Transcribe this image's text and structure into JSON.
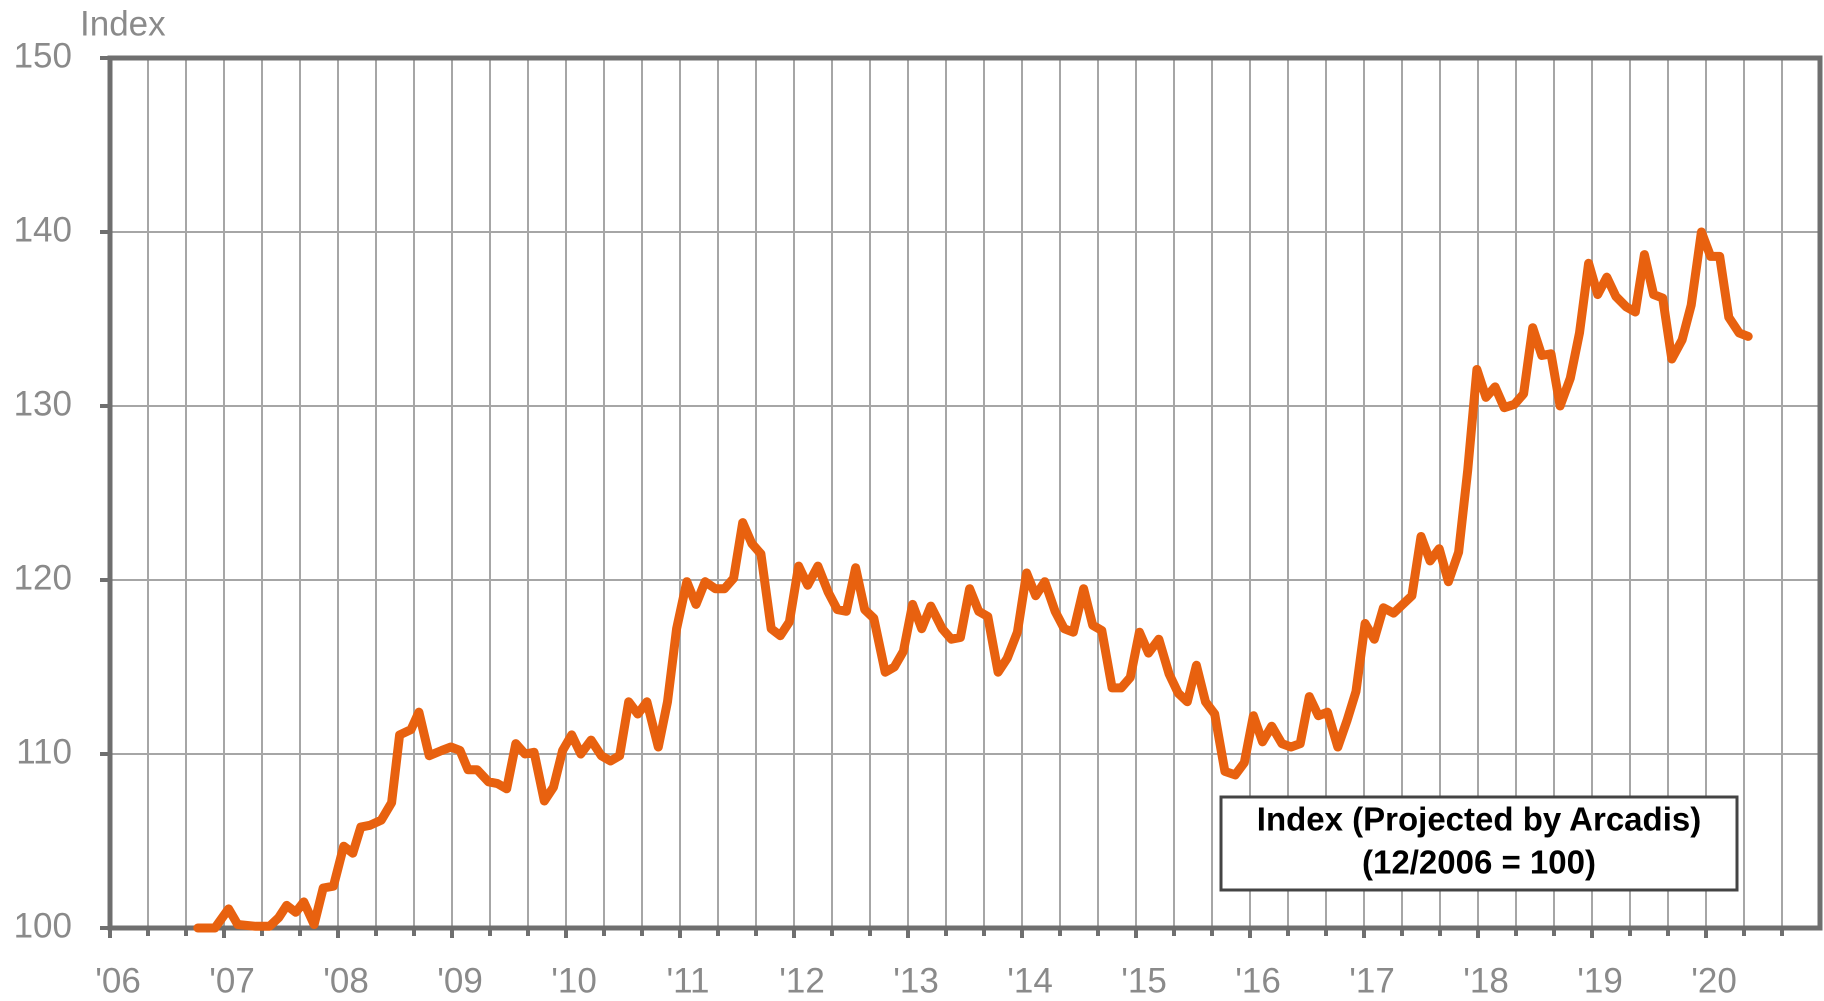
{
  "chart_data": {
    "type": "line",
    "y_label": "Index",
    "annotation": [
      "Index (Projected by Arcadis)",
      "(12/2006 = 100)"
    ],
    "xlim": [
      2006,
      2021
    ],
    "xticks": [
      {
        "value": 2006,
        "label": "'06"
      },
      {
        "value": 2007,
        "label": "'07"
      },
      {
        "value": 2008,
        "label": "'08"
      },
      {
        "value": 2009,
        "label": "'09"
      },
      {
        "value": 2010,
        "label": "'10"
      },
      {
        "value": 2011,
        "label": "'11"
      },
      {
        "value": 2012,
        "label": "'12"
      },
      {
        "value": 2013,
        "label": "'13"
      },
      {
        "value": 2014,
        "label": "'14"
      },
      {
        "value": 2015,
        "label": "'15"
      },
      {
        "value": 2016,
        "label": "'16"
      },
      {
        "value": 2017,
        "label": "'17"
      },
      {
        "value": 2018,
        "label": "'18"
      },
      {
        "value": 2019,
        "label": "'19"
      },
      {
        "value": 2020,
        "label": "'20"
      }
    ],
    "ylim": [
      100,
      150
    ],
    "yticks": [
      100,
      110,
      120,
      130,
      140,
      150
    ],
    "grid": true,
    "x": [
      2006.77,
      2006.92,
      2007.04,
      2007.12,
      2007.28,
      2007.4,
      2007.48,
      2007.55,
      2007.63,
      2007.7,
      2007.79,
      2007.87,
      2007.96,
      2008.05,
      2008.13,
      2008.2,
      2008.28,
      2008.38,
      2008.47,
      2008.54,
      2008.64,
      2008.71,
      2008.8,
      2008.91,
      2008.99,
      2009.07,
      2009.14,
      2009.22,
      2009.32,
      2009.4,
      2009.48,
      2009.56,
      2009.64,
      2009.72,
      2009.81,
      2009.89,
      2009.97,
      2010.05,
      2010.13,
      2010.22,
      2010.31,
      2010.39,
      2010.47,
      2010.55,
      2010.63,
      2010.71,
      2010.81,
      2010.89,
      2010.97,
      2011.06,
      2011.14,
      2011.22,
      2011.31,
      2011.39,
      2011.47,
      2011.55,
      2011.63,
      2011.71,
      2011.8,
      2011.88,
      2011.96,
      2012.04,
      2012.12,
      2012.21,
      2012.3,
      2012.38,
      2012.46,
      2012.54,
      2012.62,
      2012.7,
      2012.8,
      2012.88,
      2012.96,
      2013.04,
      2013.12,
      2013.2,
      2013.3,
      2013.38,
      2013.46,
      2013.54,
      2013.62,
      2013.7,
      2013.79,
      2013.87,
      2013.96,
      2014.04,
      2014.12,
      2014.2,
      2014.29,
      2014.37,
      2014.45,
      2014.54,
      2014.62,
      2014.7,
      2014.79,
      2014.87,
      2014.95,
      2015.03,
      2015.11,
      2015.2,
      2015.29,
      2015.37,
      2015.45,
      2015.53,
      2015.61,
      2015.69,
      2015.78,
      2015.87,
      2015.95,
      2016.03,
      2016.11,
      2016.19,
      2016.28,
      2016.36,
      2016.44,
      2016.52,
      2016.6,
      2016.68,
      2016.77,
      2016.85,
      2016.93,
      2017.01,
      2017.09,
      2017.17,
      2017.26,
      2017.34,
      2017.42,
      2017.5,
      2017.58,
      2017.66,
      2017.74,
      2017.83,
      2017.91,
      2017.99,
      2018.07,
      2018.15,
      2018.23,
      2018.32,
      2018.4,
      2018.48,
      2018.56,
      2018.64,
      2018.72,
      2018.81,
      2018.89,
      2018.97,
      2019.05,
      2019.13,
      2019.21,
      2019.3,
      2019.38,
      2019.46,
      2019.54,
      2019.62,
      2019.7,
      2019.79,
      2019.87,
      2019.96,
      2020.04,
      2020.12,
      2020.2,
      2020.29,
      2020.37
    ],
    "series": [
      {
        "name": "Index (Projected by Arcadis)",
        "color": "#e8610f",
        "values": [
          100.0,
          100.0,
          101.1,
          100.2,
          100.1,
          100.1,
          100.6,
          101.3,
          100.9,
          101.5,
          100.2,
          102.3,
          102.4,
          104.7,
          104.3,
          105.8,
          105.9,
          106.2,
          107.2,
          111.1,
          111.4,
          112.4,
          109.9,
          110.2,
          110.4,
          110.2,
          109.1,
          109.1,
          108.4,
          108.3,
          108.0,
          110.6,
          110.0,
          110.1,
          107.3,
          108.1,
          110.2,
          111.1,
          110.0,
          110.8,
          109.9,
          109.6,
          109.9,
          113.0,
          112.3,
          113.0,
          110.4,
          113.0,
          117.2,
          119.9,
          118.6,
          119.9,
          119.5,
          119.5,
          120.1,
          123.3,
          122.1,
          121.5,
          117.2,
          116.8,
          117.6,
          120.8,
          119.7,
          120.8,
          119.3,
          118.3,
          118.2,
          120.7,
          118.3,
          117.8,
          114.7,
          115.0,
          115.9,
          118.6,
          117.2,
          118.5,
          117.2,
          116.6,
          116.7,
          119.5,
          118.2,
          117.9,
          114.7,
          115.5,
          117.0,
          120.4,
          119.1,
          119.9,
          118.2,
          117.2,
          117.0,
          119.5,
          117.4,
          117.1,
          113.8,
          113.8,
          114.4,
          117.0,
          115.8,
          116.6,
          114.6,
          113.5,
          113.0,
          115.1,
          113.0,
          112.3,
          109.0,
          108.8,
          109.5,
          112.2,
          110.7,
          111.6,
          110.6,
          110.4,
          110.6,
          113.3,
          112.2,
          112.4,
          110.4,
          111.9,
          113.6,
          117.5,
          116.6,
          118.4,
          118.1,
          118.6,
          119.1,
          122.5,
          121.1,
          121.8,
          119.9,
          121.6,
          126.3,
          132.1,
          130.5,
          131.1,
          129.9,
          130.1,
          130.7,
          134.5,
          132.9,
          133.0,
          130.0,
          131.6,
          134.2,
          138.2,
          136.4,
          137.4,
          136.3,
          135.7,
          135.4,
          138.7,
          136.4,
          136.2,
          132.7,
          133.8,
          135.8,
          140.0,
          138.6,
          138.6,
          135.1,
          134.2,
          134.0
        ]
      }
    ]
  }
}
